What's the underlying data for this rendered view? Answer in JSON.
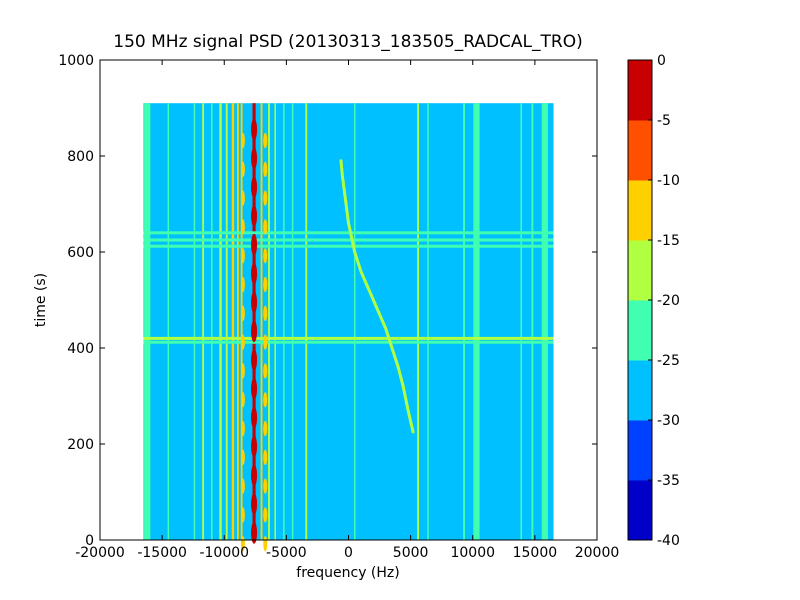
{
  "chart_data": {
    "type": "heatmap",
    "title": "150 MHz signal PSD (20130313_183505_RADCAL_TRO)",
    "xlabel": "frequency (Hz)",
    "ylabel": "time (s)",
    "xlim": [
      -20000,
      20000
    ],
    "ylim": [
      0,
      1000
    ],
    "x_ticks": [
      -20000,
      -15000,
      -10000,
      -5000,
      0,
      5000,
      10000,
      15000,
      20000
    ],
    "y_ticks": [
      0,
      200,
      400,
      600,
      800,
      1000
    ],
    "data_extent": {
      "x": [
        -16500,
        16500
      ],
      "y": [
        0,
        910
      ]
    },
    "background_level": -27.5,
    "grid": false,
    "colorbar": {
      "label": "",
      "vmin": -40,
      "vmax": 0,
      "levels": [
        -40,
        -35,
        -30,
        -25,
        -20,
        -15,
        -10,
        -5,
        0
      ],
      "ticks": [
        0,
        -5,
        -10,
        -15,
        -20,
        -25,
        -30,
        -35,
        -40
      ],
      "colors": [
        "#0000c8",
        "#0040ff",
        "#00c0ff",
        "#40ffb0",
        "#b0ff40",
        "#ffd000",
        "#ff5000",
        "#c80000"
      ]
    },
    "features": {
      "vertical_bands": [
        {
          "freq": -16200,
          "width": 500,
          "level": -22
        },
        {
          "freq": -14500,
          "width": 120,
          "level": -22
        },
        {
          "freq": -12400,
          "width": 120,
          "level": -22
        },
        {
          "freq": -11700,
          "width": 150,
          "level": -18
        },
        {
          "freq": -11000,
          "width": 120,
          "level": -22
        },
        {
          "freq": -10300,
          "width": 200,
          "level": -20
        },
        {
          "freq": -9800,
          "width": 150,
          "level": -18
        },
        {
          "freq": -9300,
          "width": 200,
          "level": -15
        },
        {
          "freq": -8900,
          "width": 150,
          "level": -12
        },
        {
          "freq": -8600,
          "width": 150,
          "level": -15
        },
        {
          "freq": -7600,
          "width": 250,
          "level": -3
        },
        {
          "freq": -7000,
          "width": 150,
          "level": -12
        },
        {
          "freq": -6400,
          "width": 150,
          "level": -18
        },
        {
          "freq": -5900,
          "width": 120,
          "level": -18
        },
        {
          "freq": -5200,
          "width": 120,
          "level": -22
        },
        {
          "freq": -4500,
          "width": 120,
          "level": -22
        },
        {
          "freq": -3400,
          "width": 150,
          "level": -18
        },
        {
          "freq": 500,
          "width": 100,
          "level": -22
        },
        {
          "freq": 5600,
          "width": 150,
          "level": -20
        },
        {
          "freq": 6400,
          "width": 100,
          "level": -22
        },
        {
          "freq": 9300,
          "width": 150,
          "level": -22
        },
        {
          "freq": 10300,
          "width": 500,
          "level": -22
        },
        {
          "freq": 13900,
          "width": 100,
          "level": -22
        },
        {
          "freq": 14800,
          "width": 150,
          "level": -22
        },
        {
          "freq": 15800,
          "width": 500,
          "level": -22
        }
      ],
      "horizontal_bands": [
        {
          "time": 420,
          "level": -18
        },
        {
          "time": 412,
          "level": -22
        },
        {
          "time": 640,
          "level": -22
        },
        {
          "time": 625,
          "level": -22
        },
        {
          "time": 612,
          "level": -22
        }
      ],
      "drifting_tone": {
        "level": -18,
        "points": [
          [
            -600,
            790
          ],
          [
            -500,
            760
          ],
          [
            -300,
            720
          ],
          [
            0,
            660
          ],
          [
            500,
            600
          ],
          [
            1000,
            560
          ],
          [
            1500,
            530
          ],
          [
            2000,
            500
          ],
          [
            2500,
            470
          ],
          [
            3000,
            440
          ],
          [
            3500,
            400
          ],
          [
            4000,
            360
          ],
          [
            4400,
            320
          ],
          [
            4800,
            270
          ],
          [
            5200,
            225
          ]
        ]
      },
      "modulated_peak": {
        "freq": -7600,
        "period": 60,
        "level": -3
      }
    }
  }
}
